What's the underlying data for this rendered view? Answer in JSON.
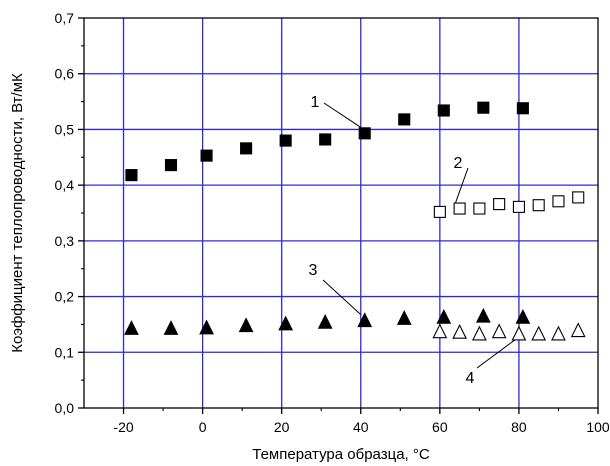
{
  "chart_data": {
    "type": "scatter",
    "title": "",
    "xlabel": "Температура образца, °С",
    "ylabel": "Коэффициент теплопроводности, Вт/мК",
    "xlim": [
      -30,
      100
    ],
    "ylim": [
      0.0,
      0.7
    ],
    "x_ticks": [
      -20,
      0,
      20,
      40,
      60,
      80,
      100
    ],
    "x_tick_labels": [
      "-20",
      "0",
      "20",
      "40",
      "60",
      "80",
      "100"
    ],
    "y_ticks": [
      0.0,
      0.1,
      0.2,
      0.3,
      0.4,
      0.5,
      0.6,
      0.7
    ],
    "y_tick_labels": [
      "0,0",
      "0,1",
      "0,2",
      "0,3",
      "0,4",
      "0,5",
      "0,6",
      "0,7"
    ],
    "grid": true,
    "grid_color": "#2b2bd6",
    "series": [
      {
        "name": "1",
        "marker": "square-filled",
        "x": [
          -18,
          -8,
          1,
          11,
          21,
          31,
          41,
          51,
          61,
          71,
          81
        ],
        "y": [
          0.418,
          0.436,
          0.453,
          0.466,
          0.48,
          0.482,
          0.493,
          0.518,
          0.534,
          0.539,
          0.538
        ]
      },
      {
        "name": "2",
        "marker": "square-open",
        "x": [
          60,
          65,
          70,
          75,
          80,
          85,
          90,
          95
        ],
        "y": [
          0.352,
          0.358,
          0.358,
          0.366,
          0.361,
          0.364,
          0.371,
          0.378
        ]
      },
      {
        "name": "3",
        "marker": "triangle-filled",
        "x": [
          -18,
          -8,
          1,
          11,
          21,
          31,
          41,
          51,
          61,
          71,
          81
        ],
        "y": [
          0.143,
          0.143,
          0.144,
          0.148,
          0.151,
          0.154,
          0.157,
          0.161,
          0.163,
          0.165,
          0.163
        ]
      },
      {
        "name": "4",
        "marker": "triangle-open",
        "x": [
          60,
          65,
          70,
          75,
          80,
          85,
          90,
          95
        ],
        "y": [
          0.137,
          0.136,
          0.133,
          0.137,
          0.133,
          0.133,
          0.133,
          0.139
        ]
      }
    ],
    "annotations": [
      {
        "text": "1",
        "series": "1"
      },
      {
        "text": "2",
        "series": "2"
      },
      {
        "text": "3",
        "series": "3"
      },
      {
        "text": "4",
        "series": "4"
      }
    ]
  }
}
